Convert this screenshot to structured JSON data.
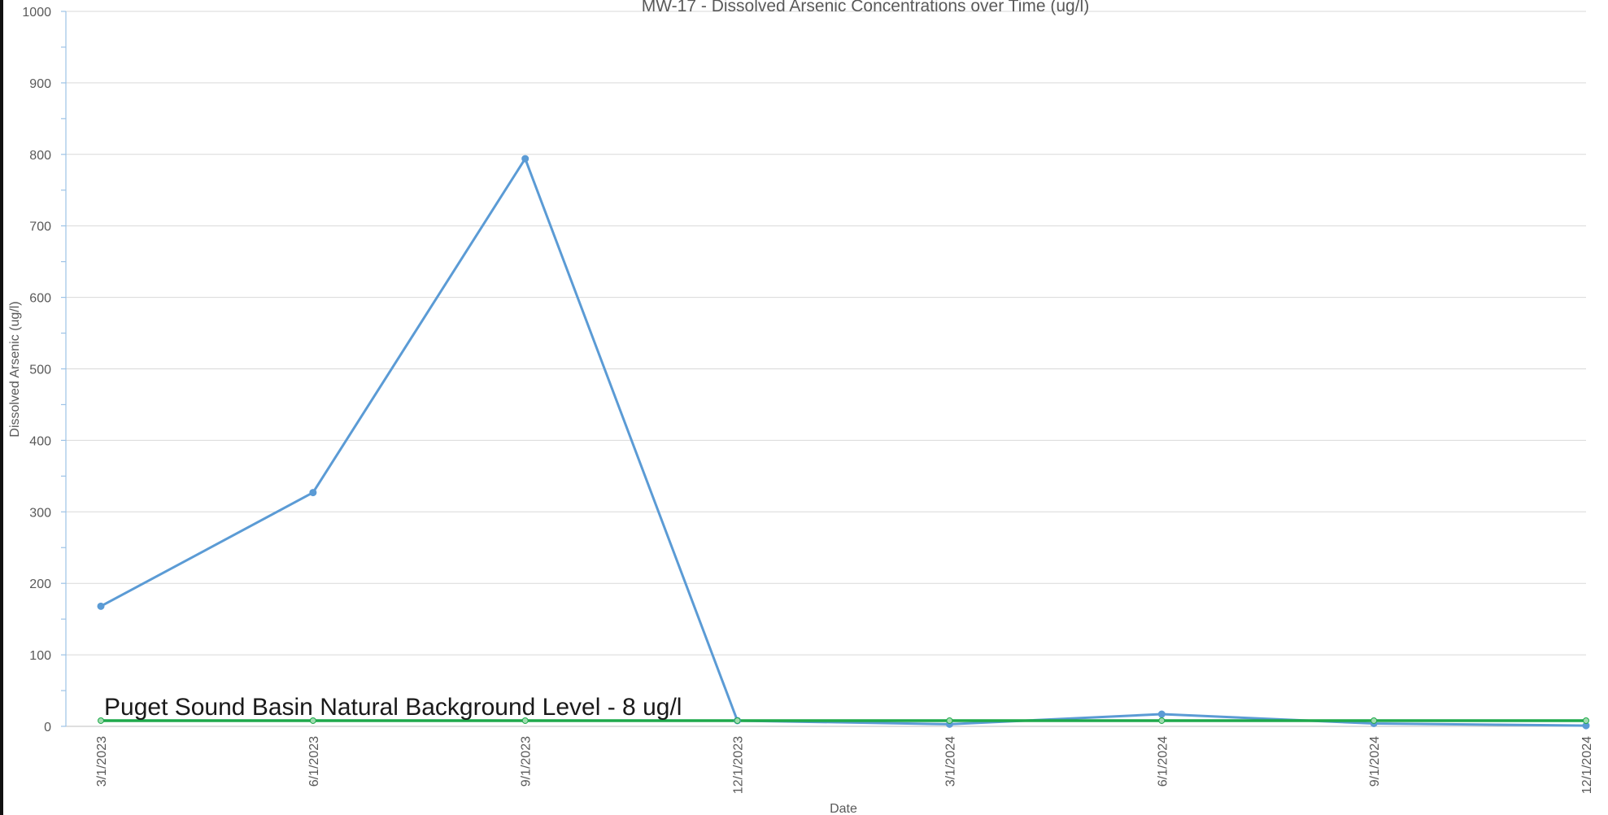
{
  "chart_data": {
    "type": "line",
    "title": "MW-17 - Dissolved Arsenic Concentrations over Time (ug/l)",
    "xlabel": "Date",
    "ylabel": "Dissolved Arsenic (ug/l)",
    "categories": [
      "3/1/2023",
      "6/1/2023",
      "9/1/2023",
      "12/1/2023",
      "3/1/2024",
      "6/1/2024",
      "9/1/2024",
      "12/1/2024"
    ],
    "ylim": [
      0,
      1000
    ],
    "yticks": [
      "0",
      "100",
      "200",
      "300",
      "400",
      "500",
      "600",
      "700",
      "800",
      "900",
      "1000"
    ],
    "grid": true,
    "series": [
      {
        "values": [
          168,
          327,
          794,
          8,
          3,
          17,
          4,
          1
        ],
        "color": "#5b9bd5"
      },
      {
        "values": [
          8,
          8,
          8,
          8,
          8,
          8,
          8,
          8
        ],
        "color": "#1fa94b"
      }
    ],
    "annotation": "Puget Sound Basin Natural Background Level - 8 ug/l"
  }
}
